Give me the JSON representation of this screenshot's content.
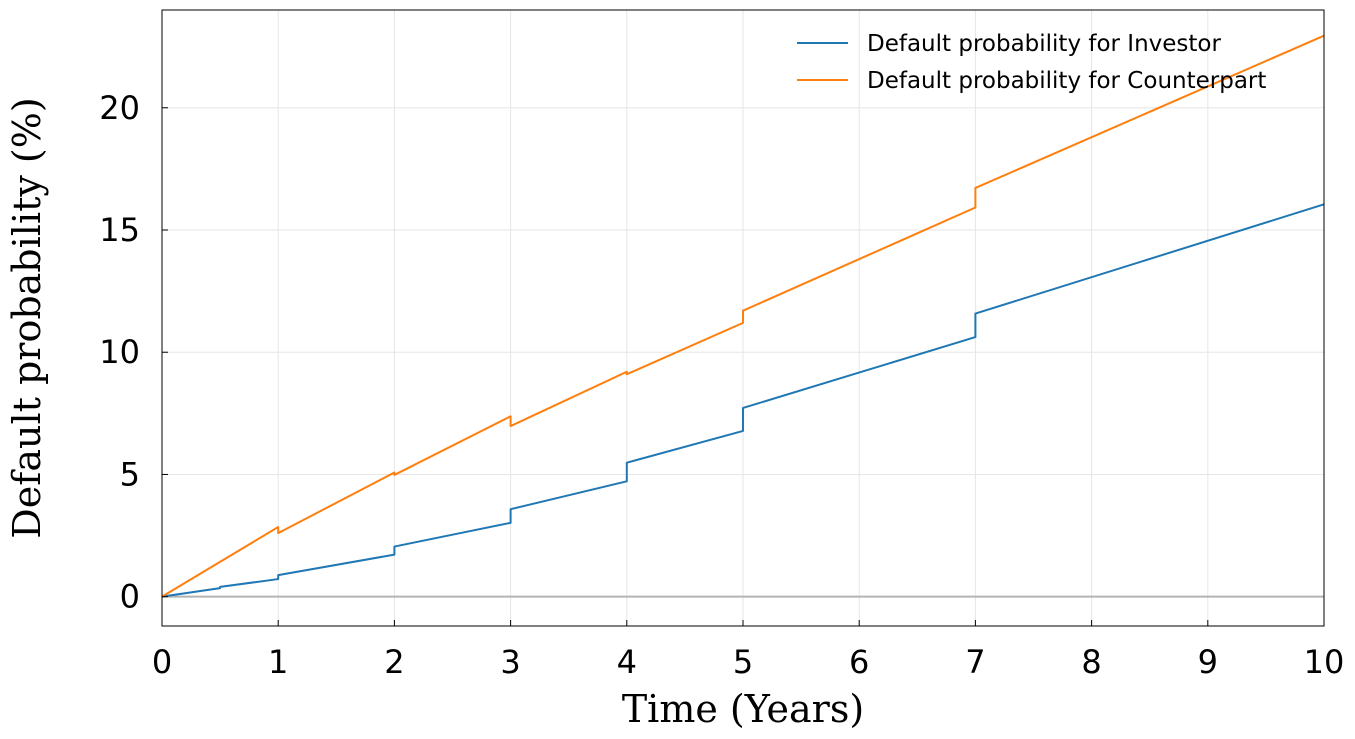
{
  "chart_data": {
    "type": "line",
    "title": "",
    "xlabel": "Time (Years)",
    "ylabel": "Default probability (%)",
    "xlim": [
      0,
      10
    ],
    "ylim": [
      -1.2,
      24.0
    ],
    "xticks": [
      0,
      1,
      2,
      3,
      4,
      5,
      6,
      7,
      8,
      9,
      10
    ],
    "yticks": [
      0,
      5,
      10,
      15,
      20
    ],
    "grid": true,
    "legend_position": "top-right",
    "reference_line_y": 0,
    "reference_line_color": "#b3b3b3",
    "series": [
      {
        "name": "Default probability for Investor",
        "color": "#1f77b4",
        "points": [
          [
            0,
            0.0
          ],
          [
            0.5,
            0.35
          ],
          [
            0.5,
            0.4
          ],
          [
            1.0,
            0.72
          ],
          [
            1.0,
            0.88
          ],
          [
            2.0,
            1.72
          ],
          [
            2.0,
            2.05
          ],
          [
            3.0,
            3.02
          ],
          [
            3.0,
            3.58
          ],
          [
            4.0,
            4.72
          ],
          [
            4.0,
            5.48
          ],
          [
            5.0,
            6.78
          ],
          [
            5.0,
            7.72
          ],
          [
            7.0,
            10.62
          ],
          [
            7.0,
            11.58
          ],
          [
            10.0,
            16.05
          ]
        ]
      },
      {
        "name": "Default probability for Counterpart",
        "color": "#ff7f0e",
        "points": [
          [
            0,
            0.0
          ],
          [
            1.0,
            2.85
          ],
          [
            1.0,
            2.6
          ],
          [
            2.0,
            5.08
          ],
          [
            2.0,
            4.98
          ],
          [
            3.0,
            7.38
          ],
          [
            3.0,
            6.98
          ],
          [
            4.0,
            9.2
          ],
          [
            4.0,
            9.1
          ],
          [
            5.0,
            11.2
          ],
          [
            5.0,
            11.7
          ],
          [
            7.0,
            15.92
          ],
          [
            7.0,
            16.72
          ],
          [
            10.0,
            22.95
          ]
        ]
      }
    ]
  }
}
